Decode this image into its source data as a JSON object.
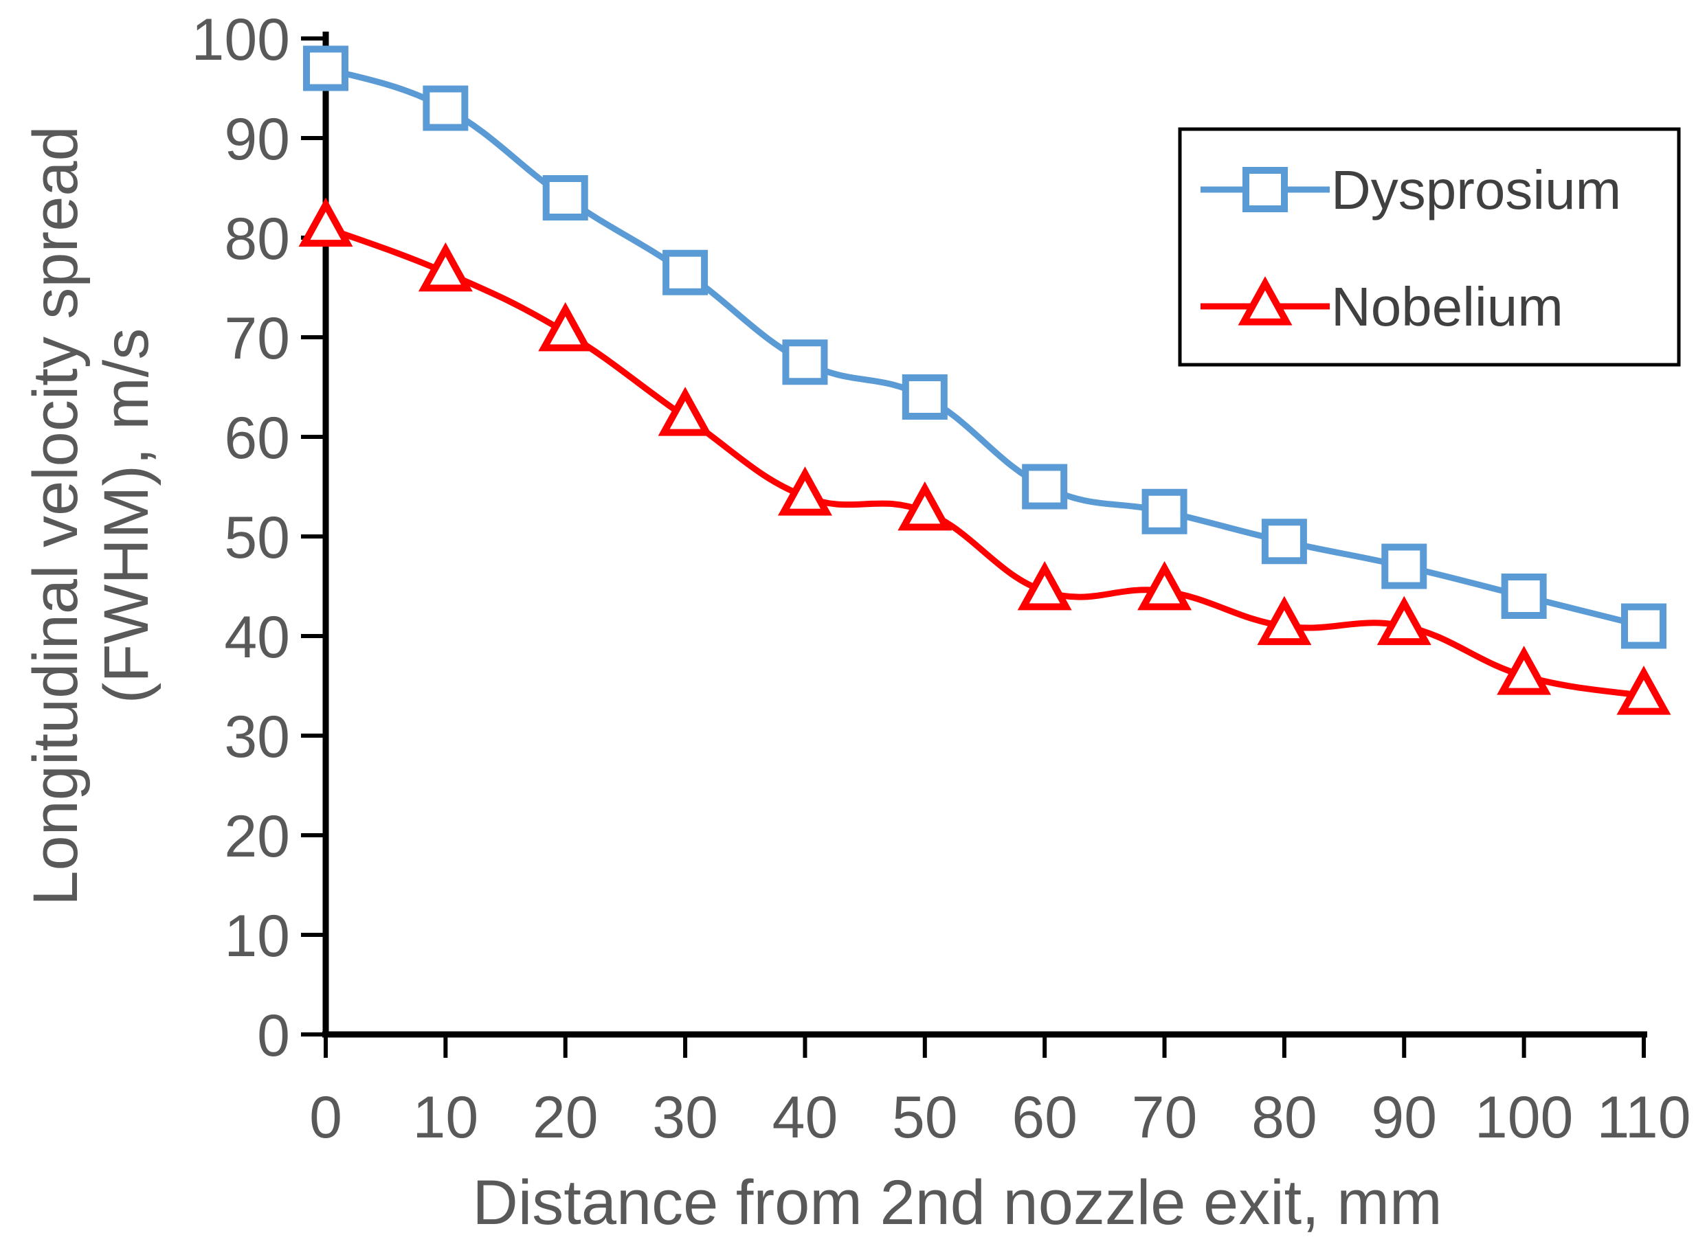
{
  "chart_data": {
    "type": "line",
    "title": "",
    "xlabel": "Distance from 2nd nozzle exit, mm",
    "ylabel_lines": [
      "Longitudinal velocity spread",
      "(FWHM), m/s"
    ],
    "xlim": [
      0,
      110
    ],
    "ylim": [
      0,
      100
    ],
    "x_ticks": [
      0,
      10,
      20,
      30,
      40,
      50,
      60,
      70,
      80,
      90,
      100,
      110
    ],
    "y_ticks": [
      0,
      10,
      20,
      30,
      40,
      50,
      60,
      70,
      80,
      90,
      100
    ],
    "grid": false,
    "legend_position": "top-right",
    "x": [
      0,
      10,
      20,
      30,
      40,
      50,
      60,
      70,
      80,
      90,
      100,
      110
    ],
    "series": [
      {
        "name": "Dysprosium",
        "color": "#5b9bd5",
        "marker": "square",
        "values": [
          97,
          93,
          84,
          76.5,
          67.5,
          64,
          55,
          52.5,
          49.5,
          47,
          44,
          41
        ]
      },
      {
        "name": "Nobelium",
        "color": "#ff0000",
        "marker": "triangle",
        "values": [
          81,
          76.5,
          70.5,
          62,
          54,
          52.5,
          44.5,
          44.5,
          41,
          41,
          36,
          34
        ]
      }
    ]
  }
}
